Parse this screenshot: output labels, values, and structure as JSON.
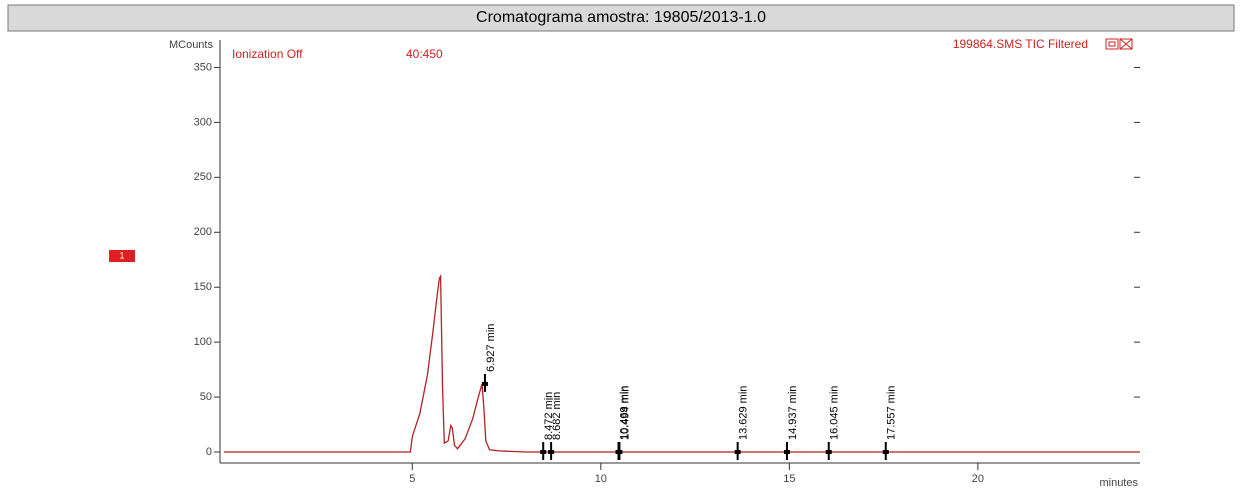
{
  "chart_data": {
    "type": "line",
    "title": "Cromatograma amostra: 19805/2013-1.0",
    "y_label": "MCounts",
    "x_label": "minutes",
    "annotations": [
      "Ionization Off",
      "40:450",
      "199864.SMS TIC Filtered",
      "1"
    ],
    "x": [
      0,
      4.95,
      5.0,
      5.2,
      5.4,
      5.55,
      5.65,
      5.72,
      5.75,
      5.8,
      5.85,
      5.95,
      6.02,
      6.06,
      6.12,
      6.2,
      6.4,
      6.6,
      6.75,
      6.85,
      6.9,
      6.95,
      7.05,
      7.3,
      8.0,
      12,
      24.3
    ],
    "series": [
      {
        "name": "199864.SMS TIC Filtered",
        "color": "#b22222",
        "values": [
          0,
          0,
          14,
          35,
          70,
          110,
          140,
          158,
          160,
          60,
          8,
          10,
          24,
          22,
          6,
          3,
          12,
          30,
          50,
          62,
          40,
          10,
          2,
          1,
          0,
          0,
          0
        ]
      }
    ],
    "peaks": [
      {
        "time": 6.927,
        "value": 62,
        "label": "6.927 min"
      },
      {
        "time": 8.472,
        "value": 0,
        "label": "8.472 min"
      },
      {
        "time": 8.682,
        "value": 0,
        "label": "8.682 min"
      },
      {
        "time": 10.469,
        "value": 0,
        "label": "10.469 min"
      },
      {
        "time": 10.494,
        "value": 0,
        "label": "10.494 min"
      },
      {
        "time": 13.629,
        "value": 0,
        "label": "13.629 min"
      },
      {
        "time": 14.937,
        "value": 0,
        "label": "14.937 min"
      },
      {
        "time": 16.045,
        "value": 0,
        "label": "16.045 min"
      },
      {
        "time": 17.557,
        "value": 0,
        "label": "17.557 min"
      }
    ],
    "xlim": [
      -0.1,
      24.3
    ],
    "ylim": [
      -10,
      375
    ],
    "xticks": [
      5,
      10,
      15,
      20
    ],
    "yticks": [
      0,
      50,
      100,
      150,
      200,
      250,
      300,
      350
    ]
  }
}
